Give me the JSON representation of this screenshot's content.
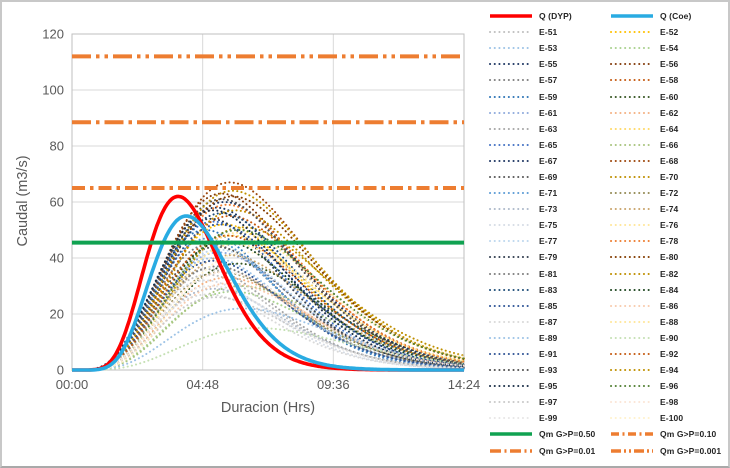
{
  "window": {
    "background": "#FFFFFF",
    "border_color": "#C8C8C8"
  },
  "chart_data": {
    "type": "line",
    "title": "",
    "xlabel": "Duracion (Hrs)",
    "ylabel": "Caudal (m3/s)",
    "xlim_hours": [
      0,
      14.4
    ],
    "ylim": [
      0,
      120
    ],
    "grid": true,
    "legend_position": "right",
    "legend_columns": 2,
    "x_ticks": [
      {
        "hours": 0,
        "label": "00:00"
      },
      {
        "hours": 4.8,
        "label": "04:48"
      },
      {
        "hours": 9.6,
        "label": "09:36"
      },
      {
        "hours": 14.4,
        "label": "14:24"
      }
    ],
    "y_ticks": [
      {
        "value": 0,
        "label": "0"
      },
      {
        "value": 20,
        "label": "20"
      },
      {
        "value": 40,
        "label": "40"
      },
      {
        "value": 60,
        "label": "60"
      },
      {
        "value": 80,
        "label": "80"
      },
      {
        "value": 100,
        "label": "100"
      },
      {
        "value": 120,
        "label": "120"
      }
    ],
    "main_series": [
      {
        "name": "Q (DYP)",
        "color": "#FF0000",
        "style": "solid",
        "peak_m3s": 62,
        "peak_hr": 3.9,
        "shape_m": 8
      },
      {
        "name": "Q (Coe)",
        "color": "#29ABE2",
        "style": "solid",
        "peak_m3s": 55,
        "peak_hr": 4.2,
        "shape_m": 8
      }
    ],
    "ensemble_shape_m": 5,
    "ensemble_series": [
      {
        "name": "E-51",
        "color": "#BFBFBF",
        "peak_m3s": 34,
        "peak_hr": 5.0
      },
      {
        "name": "E-52",
        "color": "#FFC000",
        "peak_m3s": 52,
        "peak_hr": 5.6
      },
      {
        "name": "E-53",
        "color": "#9DC3E6",
        "peak_m3s": 40,
        "peak_hr": 5.2
      },
      {
        "name": "E-54",
        "color": "#A9D18E",
        "peak_m3s": 28,
        "peak_hr": 5.9
      },
      {
        "name": "E-55",
        "color": "#1F3864",
        "peak_m3s": 58,
        "peak_hr": 5.3
      },
      {
        "name": "E-56",
        "color": "#843C0C",
        "peak_m3s": 63,
        "peak_hr": 5.5
      },
      {
        "name": "E-57",
        "color": "#7F7F7F",
        "peak_m3s": 45,
        "peak_hr": 5.1
      },
      {
        "name": "E-58",
        "color": "#C55A11",
        "peak_m3s": 55,
        "peak_hr": 5.8
      },
      {
        "name": "E-59",
        "color": "#2E75B6",
        "peak_m3s": 50,
        "peak_hr": 4.9
      },
      {
        "name": "E-60",
        "color": "#375623",
        "peak_m3s": 38,
        "peak_hr": 6.1
      },
      {
        "name": "E-61",
        "color": "#8FAADC",
        "peak_m3s": 42,
        "peak_hr": 5.4
      },
      {
        "name": "E-62",
        "color": "#F4B183",
        "peak_m3s": 33,
        "peak_hr": 5.7
      },
      {
        "name": "E-63",
        "color": "#A6A6A6",
        "peak_m3s": 36,
        "peak_hr": 5.0
      },
      {
        "name": "E-64",
        "color": "#FFD966",
        "peak_m3s": 48,
        "peak_hr": 5.9
      },
      {
        "name": "E-65",
        "color": "#4472C4",
        "peak_m3s": 53,
        "peak_hr": 5.2
      },
      {
        "name": "E-66",
        "color": "#A9C47F",
        "peak_m3s": 30,
        "peak_hr": 6.2
      },
      {
        "name": "E-67",
        "color": "#203864",
        "peak_m3s": 60,
        "peak_hr": 5.6
      },
      {
        "name": "E-68",
        "color": "#9E480E",
        "peak_m3s": 67,
        "peak_hr": 5.8
      },
      {
        "name": "E-69",
        "color": "#595959",
        "peak_m3s": 44,
        "peak_hr": 5.3
      },
      {
        "name": "E-70",
        "color": "#BF8F00",
        "peak_m3s": 57,
        "peak_hr": 6.0
      },
      {
        "name": "E-71",
        "color": "#5B9BD5",
        "peak_m3s": 47,
        "peak_hr": 5.0
      },
      {
        "name": "E-72",
        "color": "#948A54",
        "peak_m3s": 35,
        "peak_hr": 5.5
      },
      {
        "name": "E-73",
        "color": "#ADB9CA",
        "peak_m3s": 29,
        "peak_hr": 5.2
      },
      {
        "name": "E-74",
        "color": "#C9A46B",
        "peak_m3s": 41,
        "peak_hr": 5.8
      },
      {
        "name": "E-75",
        "color": "#D6DCE5",
        "peak_m3s": 32,
        "peak_hr": 4.9
      },
      {
        "name": "E-76",
        "color": "#FFE699",
        "peak_m3s": 49,
        "peak_hr": 6.1
      },
      {
        "name": "E-77",
        "color": "#BDD7EE",
        "peak_m3s": 43,
        "peak_hr": 5.4
      },
      {
        "name": "E-78",
        "color": "#ED7D31",
        "peak_m3s": 59,
        "peak_hr": 5.7
      },
      {
        "name": "E-79",
        "color": "#333F50",
        "peak_m3s": 54,
        "peak_hr": 5.1
      },
      {
        "name": "E-80",
        "color": "#833C00",
        "peak_m3s": 62,
        "peak_hr": 5.9
      },
      {
        "name": "E-81",
        "color": "#808080",
        "peak_m3s": 37,
        "peak_hr": 5.3
      },
      {
        "name": "E-82",
        "color": "#BF8F00",
        "peak_m3s": 51,
        "peak_hr": 6.3
      },
      {
        "name": "E-83",
        "color": "#1F4E79",
        "peak_m3s": 56,
        "peak_hr": 5.5
      },
      {
        "name": "E-84",
        "color": "#1E4620",
        "peak_m3s": 46,
        "peak_hr": 5.6
      },
      {
        "name": "E-85",
        "color": "#2F5597",
        "peak_m3s": 39,
        "peak_hr": 5.2
      },
      {
        "name": "E-86",
        "color": "#F8CBAD",
        "peak_m3s": 31,
        "peak_hr": 5.8
      },
      {
        "name": "E-87",
        "color": "#D9D9D9",
        "peak_m3s": 27,
        "peak_hr": 5.0
      },
      {
        "name": "E-88",
        "color": "#FFE699",
        "peak_m3s": 45,
        "peak_hr": 6.0
      },
      {
        "name": "E-89",
        "color": "#9DC3E6",
        "peak_m3s": 22,
        "peak_hr": 6.3
      },
      {
        "name": "E-90",
        "color": "#C5E0B4",
        "peak_m3s": 15,
        "peak_hr": 6.8
      },
      {
        "name": "E-91",
        "color": "#305496",
        "peak_m3s": 52,
        "peak_hr": 5.4
      },
      {
        "name": "E-92",
        "color": "#C55A11",
        "peak_m3s": 48,
        "peak_hr": 5.7
      },
      {
        "name": "E-93",
        "color": "#525252",
        "peak_m3s": 61,
        "peak_hr": 5.5
      },
      {
        "name": "E-94",
        "color": "#BF9000",
        "peak_m3s": 64,
        "peak_hr": 5.9
      },
      {
        "name": "E-95",
        "color": "#1C3049",
        "peak_m3s": 57,
        "peak_hr": 5.2
      },
      {
        "name": "E-96",
        "color": "#538135",
        "peak_m3s": 50,
        "peak_hr": 6.1
      },
      {
        "name": "E-97",
        "color": "#C9C9C9",
        "peak_m3s": 26,
        "peak_hr": 5.3
      },
      {
        "name": "E-98",
        "color": "#FBE5D6",
        "peak_m3s": 35,
        "peak_hr": 5.6
      },
      {
        "name": "E-99",
        "color": "#E7E6E6",
        "peak_m3s": 30,
        "peak_hr": 5.1
      },
      {
        "name": "E-100",
        "color": "#FFF2CC",
        "peak_m3s": 42,
        "peak_hr": 6.4
      }
    ],
    "reference_lines": [
      {
        "name": "Qm G>P=0.50",
        "value_m3s": 45.5,
        "color": "#10A251",
        "style": "solid"
      },
      {
        "name": "Qm G>P=0.10",
        "value_m3s": 65,
        "color": "#ED7D31",
        "style": "dashdot"
      },
      {
        "name": "Qm G>P=0.01",
        "value_m3s": 88.5,
        "color": "#ED7D31",
        "style": "longdashdot"
      },
      {
        "name": "Qm G>P=0.001",
        "value_m3s": 112,
        "color": "#ED7D31",
        "style": "longdashdotdot"
      }
    ]
  }
}
